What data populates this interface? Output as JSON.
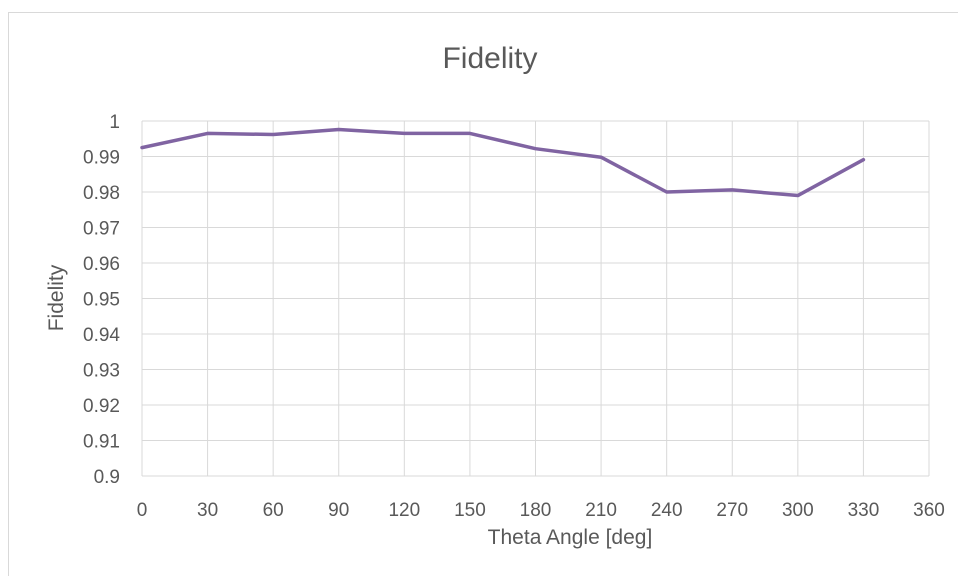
{
  "chart_data": {
    "type": "line",
    "title": "Fidelity",
    "xlabel": "Theta Angle [deg]",
    "ylabel": "Fidelity",
    "xlim": [
      0,
      360
    ],
    "ylim": [
      0.9,
      1
    ],
    "x_ticks": [
      "0",
      "30",
      "60",
      "90",
      "120",
      "150",
      "180",
      "210",
      "240",
      "270",
      "300",
      "330",
      "360"
    ],
    "y_ticks": [
      "0.9",
      "0.91",
      "0.92",
      "0.93",
      "0.94",
      "0.95",
      "0.96",
      "0.97",
      "0.98",
      "0.99",
      "1"
    ],
    "grid": true,
    "series": [
      {
        "color": "#8064a2",
        "x": [
          0,
          30,
          60,
          90,
          120,
          150,
          180,
          210,
          240,
          270,
          300,
          330
        ],
        "values": [
          0.9925,
          0.9965,
          0.9962,
          0.9976,
          0.9965,
          0.9965,
          0.9922,
          0.9898,
          0.98,
          0.9806,
          0.979,
          0.9891
        ]
      }
    ]
  }
}
